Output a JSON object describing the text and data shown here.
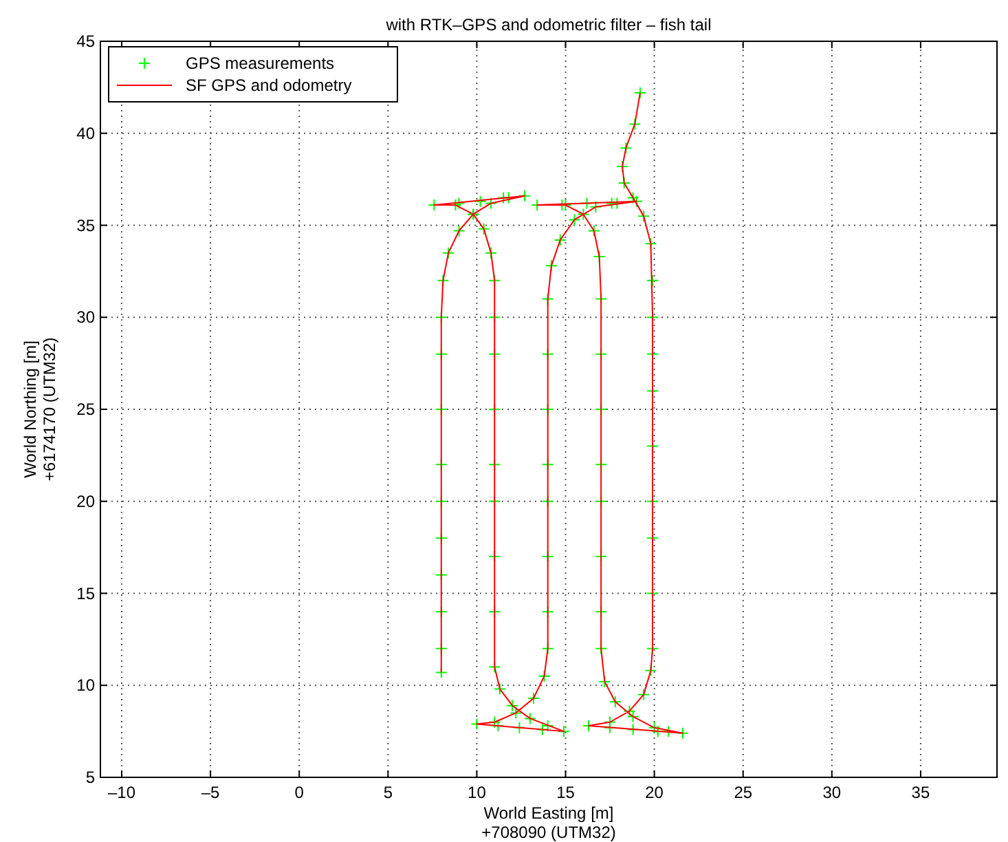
{
  "chart_data": {
    "type": "line",
    "title": "with RTK–GPS and odometric filter – fish tail",
    "xlabel": "World Easting [m]\n+708090 (UTM32)",
    "ylabel": "World Northing [m]\n+6174170 (UTM32)",
    "xlim": [
      -11.2,
      39.3
    ],
    "xticks": [
      {
        "value": -10,
        "label": "–10"
      },
      {
        "value": -5,
        "label": "–5"
      },
      0,
      5,
      10,
      15,
      20,
      25,
      30,
      35
    ],
    "ylim": [
      5,
      45
    ],
    "yticks": [
      5,
      10,
      15,
      20,
      25,
      30,
      35,
      40,
      45
    ],
    "grid": true,
    "legend": "top left",
    "series": [
      {
        "name": "GPS measurements",
        "type": "scatter",
        "marker": "cross",
        "color": "#00ff00",
        "x": [
          8,
          8,
          8,
          8,
          8,
          8,
          8,
          8,
          8,
          8,
          8.1,
          8.4,
          9,
          9.8,
          10.8,
          11.8,
          12.7,
          11.5,
          10.2,
          9,
          7.6,
          8.8,
          9.8,
          10.4,
          10.8,
          11,
          11,
          11,
          11,
          11,
          11,
          11,
          11,
          11,
          11.3,
          12,
          13,
          14,
          14.9,
          13.7,
          12.4,
          11.2,
          10,
          11,
          12.2,
          13.2,
          13.8,
          14,
          14,
          14,
          14,
          14,
          14,
          14,
          14,
          14.2,
          14.7,
          15.5,
          16.7,
          17.9,
          19,
          17.6,
          16.2,
          14.8,
          13.4,
          15,
          16,
          16.6,
          16.9,
          17,
          17,
          17,
          17,
          17,
          17,
          17,
          17,
          17.2,
          17.8,
          18.8,
          20,
          20.8,
          21.6,
          20.2,
          18.8,
          17.5,
          16.3,
          17.5,
          18.6,
          19.4,
          19.8,
          19.9,
          19.9,
          19.9,
          19.9,
          19.9,
          19.9,
          19.9,
          19.9,
          19.9,
          19.8,
          19.4,
          18.8,
          18.3,
          18.2,
          18.4,
          18.9,
          19.2
        ],
        "values": [
          10.7,
          12,
          14,
          16,
          18,
          20,
          22,
          25,
          28,
          30,
          32,
          33.5,
          34.7,
          35.6,
          36.2,
          36.5,
          36.6,
          36.5,
          36.3,
          36.2,
          36.1,
          36.1,
          35.6,
          34.8,
          33.5,
          32,
          30,
          28,
          25,
          22,
          20,
          17,
          14,
          11,
          9.8,
          8.9,
          8.2,
          7.8,
          7.5,
          7.6,
          7.7,
          7.8,
          7.9,
          8,
          8.5,
          9.3,
          10.5,
          12,
          14,
          17,
          20,
          22,
          25,
          28,
          31,
          32.8,
          34.2,
          35.3,
          36,
          36.2,
          36.3,
          36.2,
          36.2,
          36.1,
          36.1,
          36.1,
          35.6,
          34.7,
          33.3,
          31,
          28,
          25,
          22,
          20,
          17,
          14,
          12,
          10.2,
          9.1,
          8.3,
          7.7,
          7.5,
          7.4,
          7.5,
          7.6,
          7.7,
          7.8,
          8,
          8.6,
          9.5,
          10.8,
          12,
          15,
          18,
          20,
          23,
          26,
          28,
          30,
          32,
          34,
          35.5,
          36.5,
          37.3,
          38.2,
          39.2,
          40.5,
          42.2
        ]
      },
      {
        "name": "SF GPS and odometry",
        "type": "line",
        "marker": "none",
        "color": "#ff0000",
        "x": [
          8,
          8,
          8,
          8,
          8,
          8.1,
          8.4,
          9,
          9.8,
          10.8,
          12.7,
          7.6,
          8.8,
          9.8,
          10.4,
          10.8,
          11,
          11,
          11,
          11,
          11,
          11.3,
          12,
          13,
          14.9,
          10,
          11,
          12.2,
          13.2,
          13.8,
          14,
          14,
          14,
          14,
          14.2,
          14.7,
          15.5,
          16.7,
          19,
          13.4,
          15,
          16,
          16.6,
          16.9,
          17,
          17,
          17,
          17.2,
          17.8,
          18.8,
          20,
          21.6,
          16.3,
          17.5,
          18.6,
          19.4,
          19.8,
          19.9,
          19.9,
          19.9,
          19.8,
          19.4,
          18.8,
          18.3,
          18.2,
          18.4,
          18.9,
          19.2
        ],
        "values": [
          10.7,
          15,
          20,
          25,
          30,
          32,
          33.5,
          34.7,
          35.6,
          36.2,
          36.6,
          36.1,
          36.1,
          35.6,
          34.8,
          33.5,
          32,
          25,
          20,
          15,
          11,
          9.8,
          8.9,
          8.2,
          7.5,
          7.9,
          8,
          8.5,
          9.3,
          10.5,
          12,
          20,
          25,
          31,
          32.8,
          34.2,
          35.3,
          36,
          36.3,
          36.1,
          36.1,
          35.6,
          34.7,
          33.3,
          31,
          20,
          12,
          10.2,
          9.1,
          8.3,
          7.7,
          7.4,
          7.8,
          8,
          8.6,
          9.5,
          10.8,
          12,
          20,
          30,
          34,
          35.5,
          36.5,
          37.3,
          38.2,
          39.2,
          40.5,
          42.2
        ]
      }
    ]
  }
}
